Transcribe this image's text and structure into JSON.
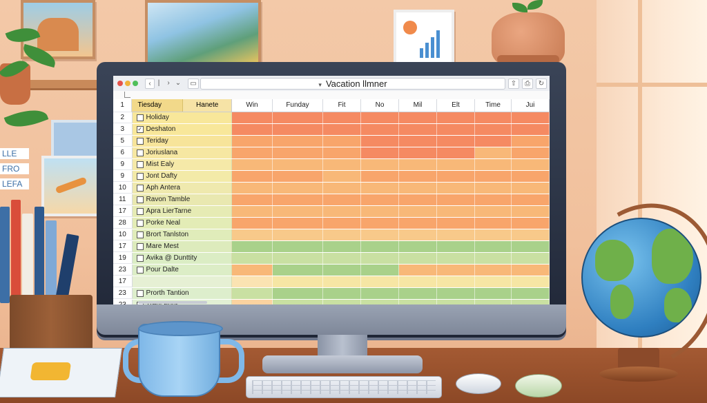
{
  "window": {
    "title": "Vacation llmner"
  },
  "sheet": {
    "header_row": "1",
    "col_a": "Tiesday",
    "col_b": "Hanete",
    "columns": [
      "Win",
      "Funday",
      "Fit",
      "No",
      "Mil",
      "Elt",
      "Time",
      "Jui"
    ],
    "rows": [
      {
        "rn": "2",
        "name": "Holiday",
        "checked": false,
        "colors": [
          "#f58a62",
          "#f58a62",
          "#f58a62",
          "#f58a62",
          "#f58a62",
          "#f58a62",
          "#f58a62",
          "#f58a62"
        ]
      },
      {
        "rn": "3",
        "name": "Deshaton",
        "checked": true,
        "colors": [
          "#f58a62",
          "#f58a62",
          "#f58a62",
          "#f58a62",
          "#f58a62",
          "#f58a62",
          "#f58a62",
          "#f58a62"
        ]
      },
      {
        "rn": "5",
        "name": "Teriday",
        "checked": false,
        "colors": [
          "#f8a56b",
          "#f8a56b",
          "#f8a56b",
          "#f58a62",
          "#f58a62",
          "#f58a62",
          "#f58a62",
          "#f8a56b"
        ]
      },
      {
        "rn": "6",
        "name": "Joriuslana",
        "checked": false,
        "colors": [
          "#f8a56b",
          "#f8a56b",
          "#f8a56b",
          "#f58a62",
          "#f58a62",
          "#f58a62",
          "#f8b878",
          "#f8a56b"
        ]
      },
      {
        "rn": "9",
        "name": "Mist Ealy",
        "checked": false,
        "colors": [
          "#f8b878",
          "#f8b878",
          "#f8b878",
          "#f8b878",
          "#f8b878",
          "#f8b878",
          "#f8b878",
          "#f8b878"
        ]
      },
      {
        "rn": "9",
        "name": "Jont Dafty",
        "checked": false,
        "colors": [
          "#f8a56b",
          "#f8a56b",
          "#f8b878",
          "#f8a56b",
          "#f8a56b",
          "#f8a56b",
          "#f8a56b",
          "#f8a56b"
        ]
      },
      {
        "rn": "10",
        "name": "Aph Antera",
        "checked": false,
        "colors": [
          "#f8b878",
          "#f8b878",
          "#f8b878",
          "#f8b878",
          "#f8b878",
          "#f8b878",
          "#f8b878",
          "#f8b878"
        ]
      },
      {
        "rn": "11",
        "name": "Ravon Tamble",
        "checked": false,
        "colors": [
          "#f8a56b",
          "#f8a56b",
          "#f8a56b",
          "#f8a56b",
          "#f8a56b",
          "#f8a56b",
          "#f8a56b",
          "#f8a56b"
        ]
      },
      {
        "rn": "17",
        "name": "Apra LierTarne",
        "checked": false,
        "colors": [
          "#f8b878",
          "#f8b878",
          "#f8b878",
          "#f8b878",
          "#f8b878",
          "#f8b878",
          "#f8b878",
          "#f8b878"
        ]
      },
      {
        "rn": "28",
        "name": "Porke Neal",
        "checked": false,
        "colors": [
          "#f8a56b",
          "#f8a56b",
          "#f8a56b",
          "#f8a56b",
          "#f8a56b",
          "#f8a56b",
          "#f8a56b",
          "#f8a56b"
        ]
      },
      {
        "rn": "10",
        "name": "Brort Tanlston",
        "checked": false,
        "colors": [
          "#f8c98a",
          "#f8c98a",
          "#f8c98a",
          "#f8c98a",
          "#f8c98a",
          "#f8c98a",
          "#f8c98a",
          "#f8c98a"
        ]
      },
      {
        "rn": "17",
        "name": "Mare Mest",
        "checked": false,
        "colors": [
          "#a9d18a",
          "#a9d18a",
          "#a9d18a",
          "#a9d18a",
          "#a9d18a",
          "#a9d18a",
          "#a9d18a",
          "#a9d18a"
        ]
      },
      {
        "rn": "19",
        "name": "Avika @ Dunttity",
        "checked": false,
        "colors": [
          "#c9e0a2",
          "#c9e0a2",
          "#c9e0a2",
          "#c9e0a2",
          "#c9e0a2",
          "#c9e0a2",
          "#c9e0a2",
          "#c9e0a2"
        ]
      },
      {
        "rn": "23",
        "name": "Pour Dalte",
        "checked": false,
        "colors": [
          "#f8b878",
          "#a9d18a",
          "#a9d18a",
          "#a9d18a",
          "#f8b878",
          "#f8b878",
          "#f8b878",
          "#f8b878"
        ]
      },
      {
        "rn": "17",
        "name": "",
        "checked": null,
        "colors": [
          "#fbe3b2",
          "#f6e6a4",
          "#f6e6a4",
          "#f6e6a4",
          "#f6e6a4",
          "#f6e6a4",
          "#f6e6a4",
          "#f6e6a4"
        ]
      },
      {
        "rn": "23",
        "name": "Prorth Tantion",
        "checked": false,
        "colors": [
          "#c9e0a2",
          "#a9d18a",
          "#a9d18a",
          "#a9d18a",
          "#a9d18a",
          "#a9d18a",
          "#a9d18a",
          "#a9d18a"
        ]
      },
      {
        "rn": "23",
        "name": "Trent Fons",
        "checked": false,
        "colors": [
          "#fbd3a0",
          "#c9e0a2",
          "#c9e0a2",
          "#c9e0a2",
          "#c9e0a2",
          "#c9e0a2",
          "#c9e0a2",
          "#c9e0a2"
        ]
      }
    ]
  },
  "wall_notes": [
    "LLE",
    "FRO",
    "LEFA"
  ]
}
